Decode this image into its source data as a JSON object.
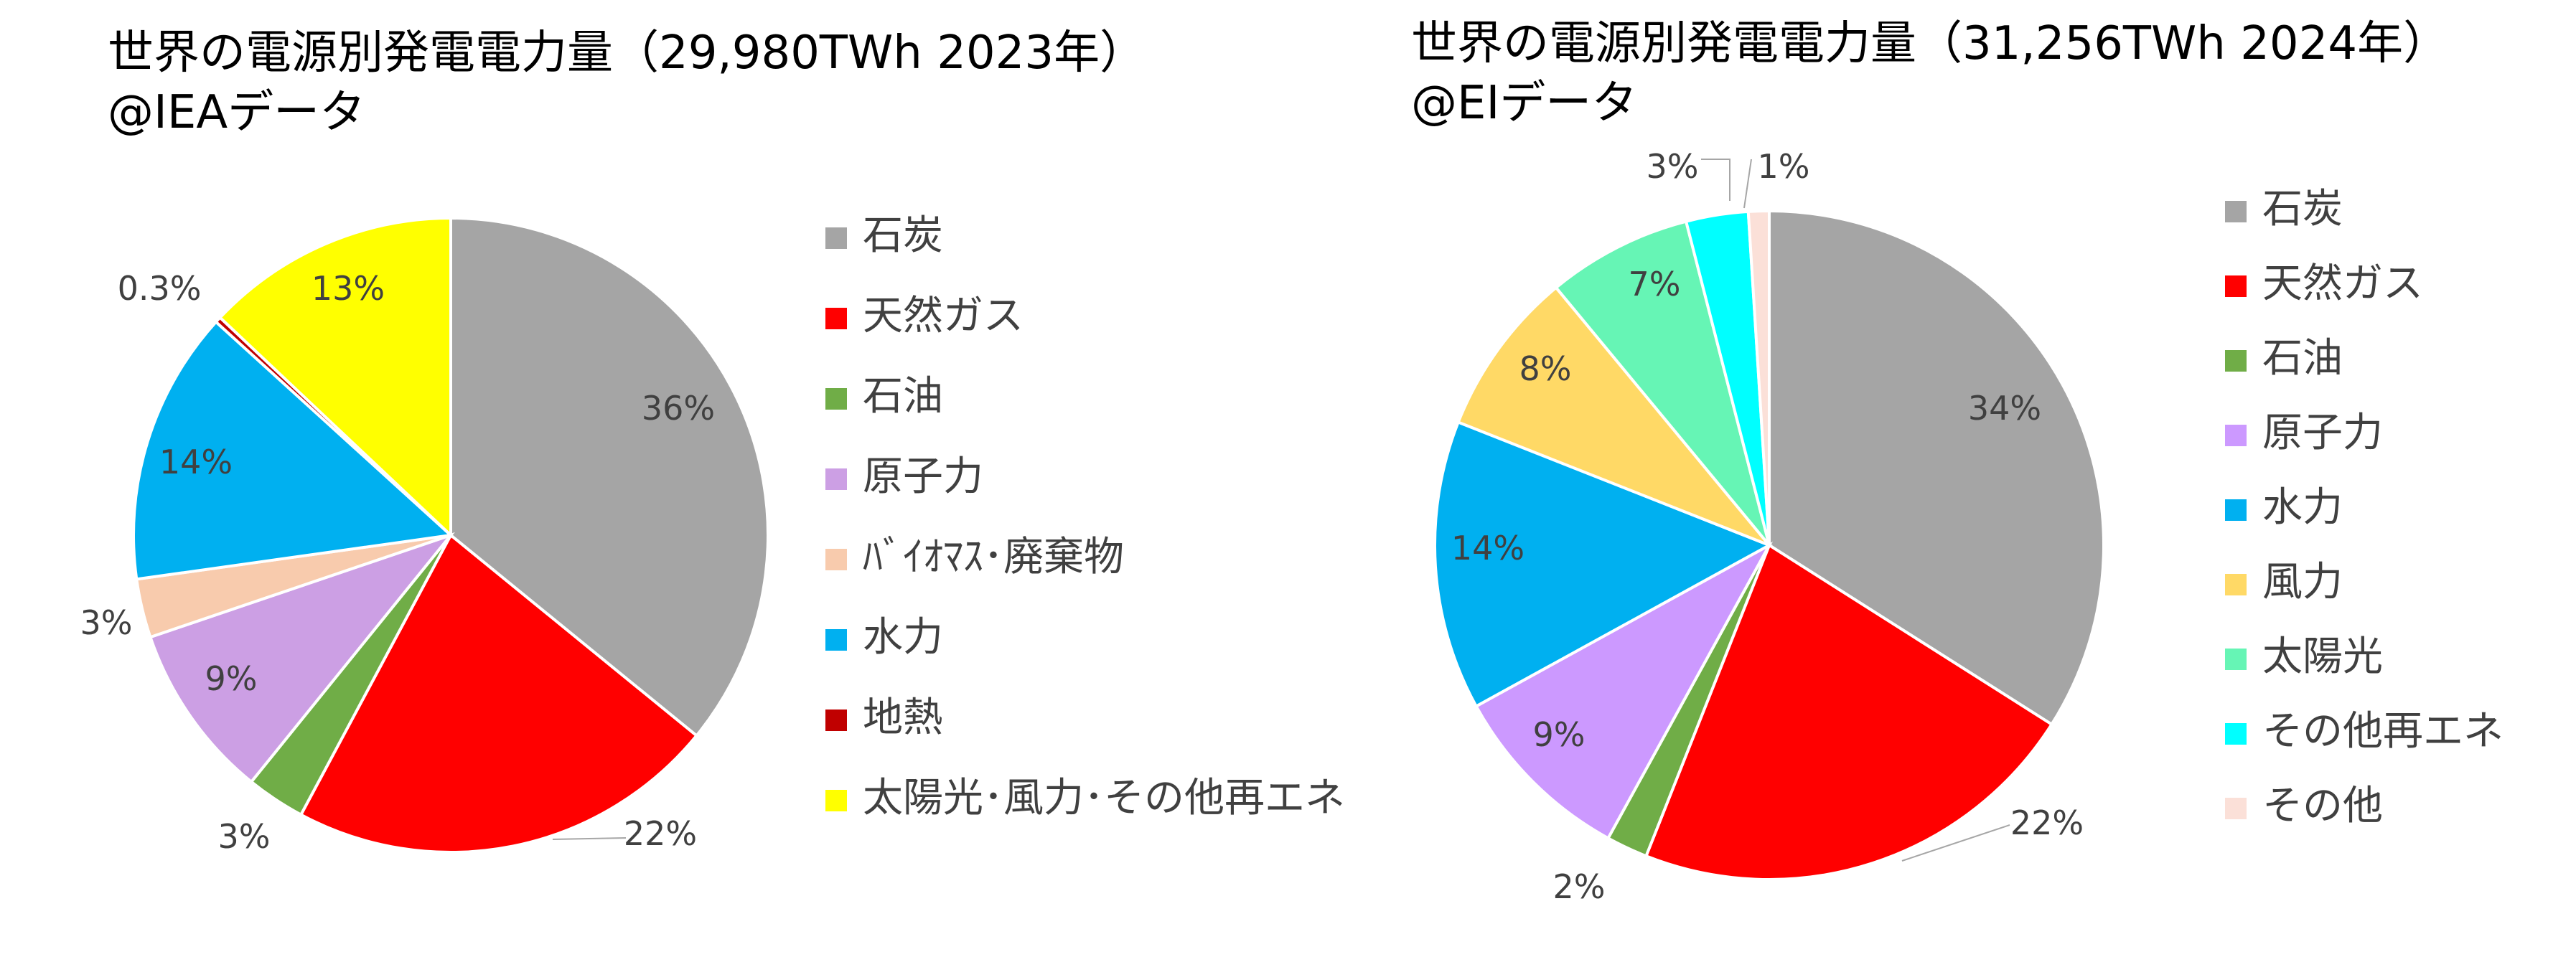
{
  "chart_data": [
    {
      "type": "pie",
      "title": "世界の電源別発電電力量（29,980TWh 2023年）",
      "subtitle": "@IEAデータ",
      "legend_position": "right",
      "series": [
        {
          "name": "石炭",
          "value": 36,
          "label": "36%",
          "color": "#a5a5a5"
        },
        {
          "name": "天然ガス",
          "value": 22,
          "label": "22%",
          "color": "#ff0000"
        },
        {
          "name": "石油",
          "value": 3,
          "label": "3%",
          "color": "#70ad47"
        },
        {
          "name": "原子力",
          "value": 9,
          "label": "9%",
          "color": "#cc9fe4"
        },
        {
          "name": "ﾊﾞｲｵﾏｽ･廃棄物",
          "value": 3,
          "label": "3%",
          "color": "#f8cbad"
        },
        {
          "name": "水力",
          "value": 14,
          "label": "14%",
          "color": "#00b0f0"
        },
        {
          "name": "地熱",
          "value": 0.3,
          "label": "0.3%",
          "color": "#c00000"
        },
        {
          "name": "太陽光･風力･その他再エネ",
          "value": 13,
          "label": "13%",
          "color": "#ffff00"
        }
      ]
    },
    {
      "type": "pie",
      "title": "世界の電源別発電電力量（31,256TWh 2024年）",
      "subtitle": "@EIデータ",
      "legend_position": "right",
      "series": [
        {
          "name": "石炭",
          "value": 34,
          "label": "34%",
          "color": "#a5a5a5"
        },
        {
          "name": "天然ガス",
          "value": 22,
          "label": "22%",
          "color": "#ff0000"
        },
        {
          "name": "石油",
          "value": 2,
          "label": "2%",
          "color": "#70ad47"
        },
        {
          "name": "原子力",
          "value": 9,
          "label": "9%",
          "color": "#cc99ff"
        },
        {
          "name": "水力",
          "value": 14,
          "label": "14%",
          "color": "#00b0f0"
        },
        {
          "name": "風力",
          "value": 8,
          "label": "8%",
          "color": "#ffd966"
        },
        {
          "name": "太陽光",
          "value": 7,
          "label": "7%",
          "color": "#66f5b5"
        },
        {
          "name": "その他再エネ",
          "value": 3,
          "label": "3%",
          "color": "#00ffff"
        },
        {
          "name": "その他",
          "value": 1,
          "label": "1%",
          "color": "#fbe0d8"
        }
      ]
    }
  ]
}
